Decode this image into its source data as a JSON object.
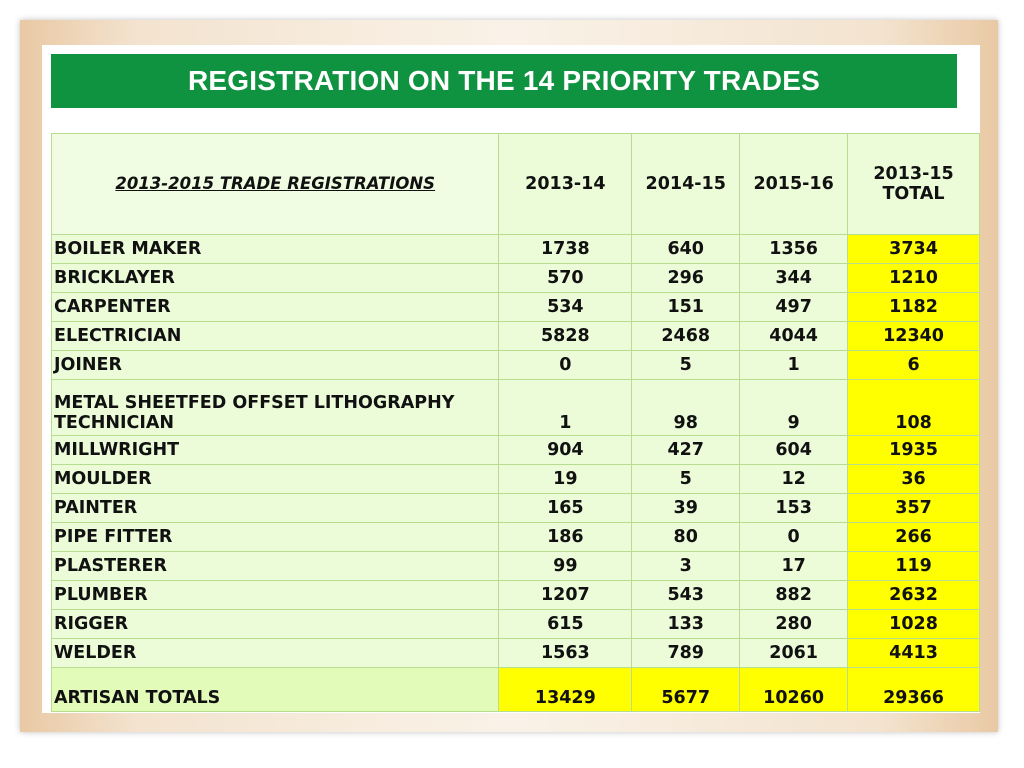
{
  "title": "REGISTRATION ON THE 14 PRIORITY TRADES",
  "table": {
    "header": {
      "corner": "2013-2015 TRADE REGISTRATIONS",
      "col1": "2013-14",
      "col2": "2014-15",
      "col3": "2015-16",
      "total_line1": "2013-15",
      "total_line2": "TOTAL"
    },
    "rows": [
      {
        "trade": "BOILER MAKER",
        "y1": "1738",
        "y2": "640",
        "y3": "1356",
        "total": "3734"
      },
      {
        "trade": "BRICKLAYER",
        "y1": "570",
        "y2": "296",
        "y3": "344",
        "total": "1210"
      },
      {
        "trade": "CARPENTER",
        "y1": "534",
        "y2": "151",
        "y3": "497",
        "total": "1182"
      },
      {
        "trade": "ELECTRICIAN",
        "y1": "5828",
        "y2": "2468",
        "y3": "4044",
        "total": "12340"
      },
      {
        "trade": "JOINER",
        "y1": "0",
        "y2": "5",
        "y3": "1",
        "total": "6"
      },
      {
        "trade_line1": "METAL SHEETFED OFFSET LITHOGRAPHY",
        "trade_line2": "TECHNICIAN",
        "y1": "1",
        "y2": "98",
        "y3": "9",
        "total": "108"
      },
      {
        "trade": "MILLWRIGHT",
        "y1": "904",
        "y2": "427",
        "y3": "604",
        "total": "1935"
      },
      {
        "trade": "MOULDER",
        "y1": "19",
        "y2": "5",
        "y3": "12",
        "total": "36"
      },
      {
        "trade": "PAINTER",
        "y1": "165",
        "y2": "39",
        "y3": "153",
        "total": "357"
      },
      {
        "trade": "PIPE FITTER",
        "y1": "186",
        "y2": "80",
        "y3": "0",
        "total": "266"
      },
      {
        "trade": "PLASTERER",
        "y1": "99",
        "y2": "3",
        "y3": "17",
        "total": "119"
      },
      {
        "trade": "PLUMBER",
        "y1": "1207",
        "y2": "543",
        "y3": "882",
        "total": "2632"
      },
      {
        "trade": "RIGGER",
        "y1": "615",
        "y2": "133",
        "y3": "280",
        "total": "1028"
      },
      {
        "trade": "WELDER",
        "y1": "1563",
        "y2": "789",
        "y3": "2061",
        "total": "4413"
      }
    ],
    "totals": {
      "label": "ARTISAN TOTALS",
      "y1": "13429",
      "y2": "5677",
      "y3": "10260",
      "total": "29366"
    }
  },
  "colors": {
    "title_bg": "#0f9340",
    "cell_bg": "#ecfcd9",
    "highlight": "#ffff00",
    "border": "#b9dd8e"
  }
}
